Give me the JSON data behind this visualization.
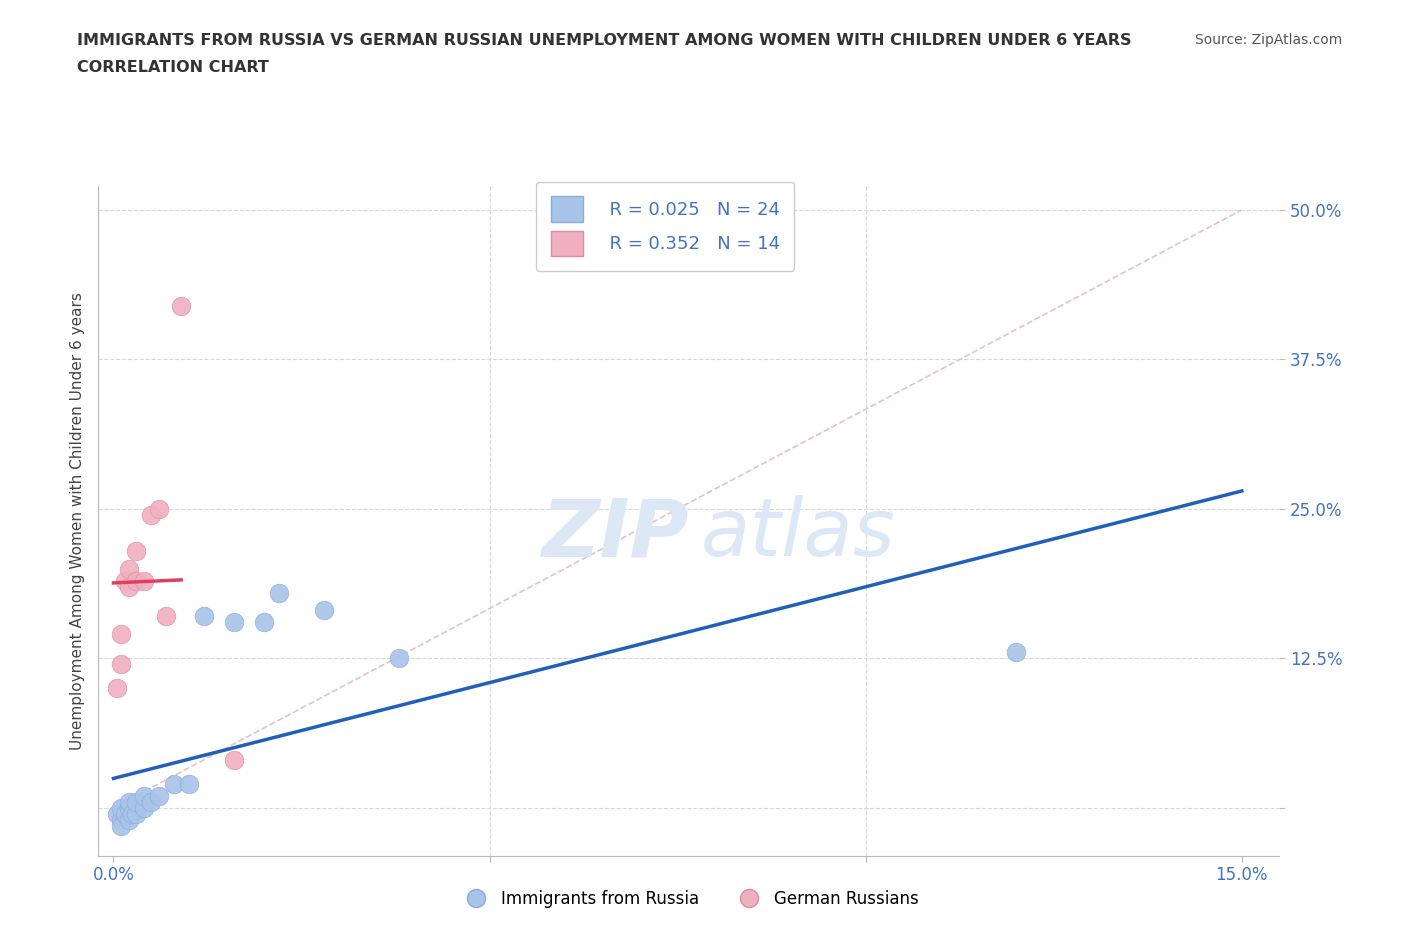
{
  "title_line1": "IMMIGRANTS FROM RUSSIA VS GERMAN RUSSIAN UNEMPLOYMENT AMONG WOMEN WITH CHILDREN UNDER 6 YEARS",
  "title_line2": "CORRELATION CHART",
  "source": "Source: ZipAtlas.com",
  "ylabel": "Unemployment Among Women with Children Under 6 years",
  "xlim": [
    -0.002,
    0.155
  ],
  "ylim": [
    -0.04,
    0.52
  ],
  "blue_color": "#a8c4e8",
  "pink_color": "#f0b0c0",
  "blue_line_color": "#2060b8",
  "pink_line_color": "#e04060",
  "diag_line_color": "#e8c0c8",
  "grid_color": "#d8d8d8",
  "title_color": "#333333",
  "tick_color": "#4472c4",
  "blue_scatter_x": [
    0.0005,
    0.001,
    0.001,
    0.001,
    0.0015,
    0.002,
    0.002,
    0.002,
    0.0025,
    0.003,
    0.003,
    0.004,
    0.004,
    0.005,
    0.006,
    0.008,
    0.01,
    0.012,
    0.016,
    0.02,
    0.022,
    0.028,
    0.038,
    0.12
  ],
  "blue_scatter_y": [
    -0.005,
    -0.01,
    0.0,
    -0.015,
    -0.005,
    -0.01,
    0.0,
    0.005,
    -0.005,
    -0.005,
    0.005,
    0.0,
    0.01,
    0.005,
    0.01,
    0.02,
    0.02,
    0.16,
    0.155,
    0.155,
    0.18,
    0.165,
    0.125,
    0.13
  ],
  "pink_scatter_x": [
    0.0005,
    0.001,
    0.001,
    0.0015,
    0.002,
    0.002,
    0.003,
    0.003,
    0.004,
    0.005,
    0.006,
    0.007,
    0.009,
    0.016
  ],
  "pink_scatter_y": [
    0.1,
    0.12,
    0.145,
    0.19,
    0.185,
    0.2,
    0.19,
    0.215,
    0.19,
    0.245,
    0.25,
    0.16,
    0.42,
    0.04
  ],
  "legend_R1": "R = 0.025",
  "legend_N1": "N = 24",
  "legend_R2": "R = 0.352",
  "legend_N2": "N = 14",
  "yticks": [
    0.0,
    0.125,
    0.25,
    0.375,
    0.5
  ],
  "ytick_labels": [
    "",
    "12.5%",
    "25.0%",
    "37.5%",
    "50.0%"
  ],
  "xticks": [
    0.0,
    0.05,
    0.1,
    0.15
  ],
  "xtick_labels": [
    "0.0%",
    "",
    "",
    "15.0%"
  ]
}
